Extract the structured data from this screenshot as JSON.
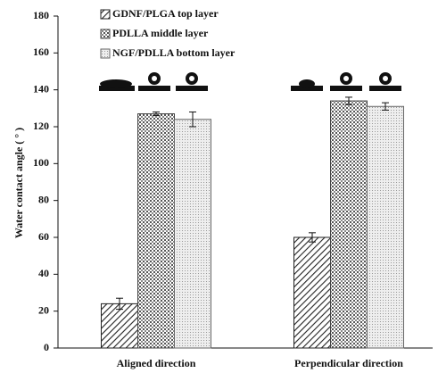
{
  "chart_data": {
    "type": "bar",
    "ylabel": "Water contact angle ( ° )",
    "categories": [
      "Aligned direction",
      "Perpendicular direction"
    ],
    "series": [
      {
        "name": "GDNF/PLGA top layer",
        "color": "#222222",
        "values": [
          24,
          60
        ],
        "errors": [
          3,
          2.5
        ]
      },
      {
        "name": "PDLLA middle layer",
        "color": "#444444",
        "values": [
          127,
          134
        ],
        "errors": [
          1,
          2
        ]
      },
      {
        "name": "NGF/PDLLA bottom layer",
        "color": "#666666",
        "values": [
          124,
          131
        ],
        "errors": [
          4,
          2
        ]
      }
    ],
    "ylim": [
      0,
      180
    ],
    "yticks": [
      0,
      20,
      40,
      60,
      80,
      100,
      120,
      140,
      160,
      180
    ],
    "grid": false
  }
}
